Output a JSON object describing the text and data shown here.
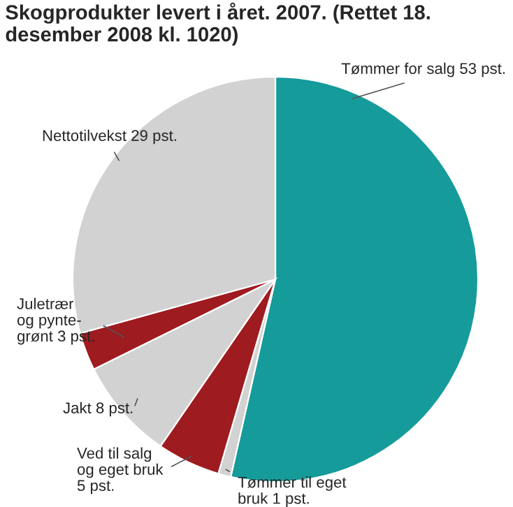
{
  "chart_data": {
    "type": "pie",
    "title": "Skogprodukter levert i året. 2007. (Rettet 18. desember 2008 kl. 1020)",
    "categories": [
      "Tømmer for salg 53 pst.",
      "Tømmer til eget\nbruk 1 pst.",
      "Ved til salg\nog eget bruk\n5 pst.",
      "Jakt 8 pst.",
      "Juletrær\nog pynte-\ngrønt 3 pst.",
      "Nettotilvekst 29 pst."
    ],
    "values": [
      53,
      1,
      5,
      8,
      3,
      29
    ],
    "colors": [
      "#169b9b",
      "#d2d2d2",
      "#9e1b20",
      "#d2d2d2",
      "#9e1b20",
      "#d2d2d2"
    ]
  }
}
